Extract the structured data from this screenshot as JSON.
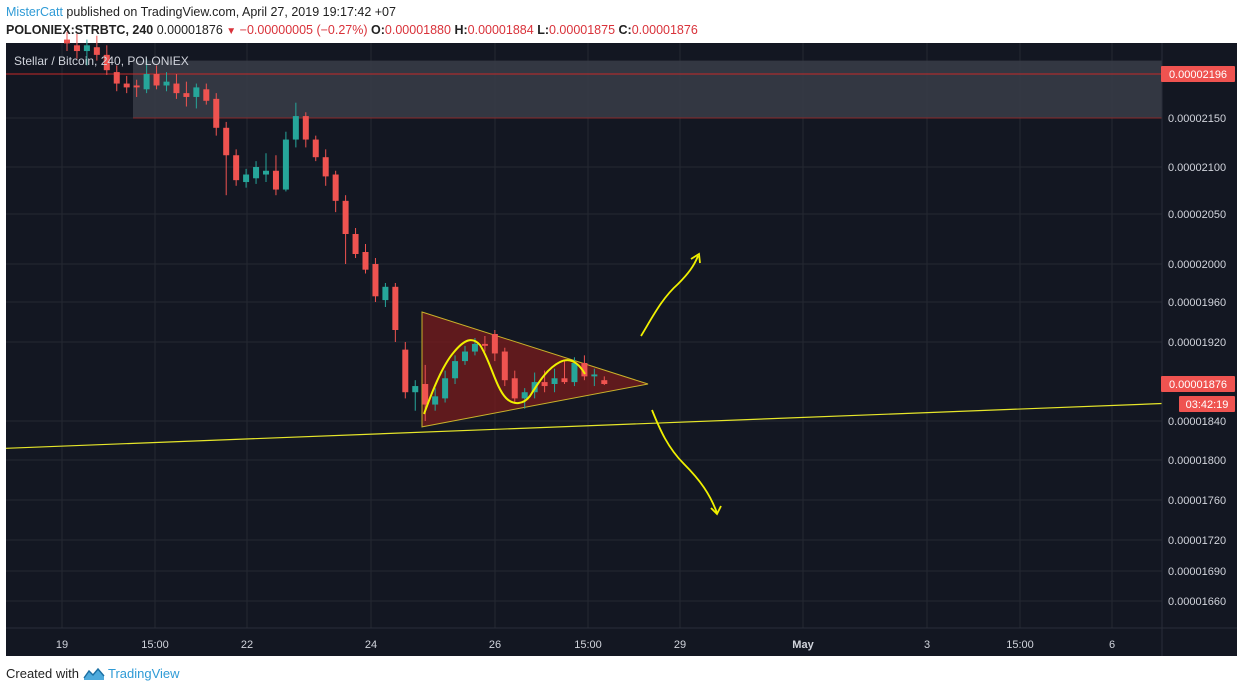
{
  "header": {
    "author": "MisterCatt",
    "published_text": " published on TradingView.com, April 27, 2019 19:17:42 +07",
    "symbol": "POLONIEX:STRBTC, 240",
    "last": "0.00001876",
    "change": "−0.00000005 (−0.27%)",
    "o_label": "O:",
    "o_value": "0.00001880",
    "h_label": "H:",
    "h_value": "0.00001884",
    "l_label": "L:",
    "l_value": "0.00001875",
    "c_label": "C:",
    "c_value": "0.00001876"
  },
  "footer": {
    "created_with": "Created with",
    "brand": "TradingView"
  },
  "colors": {
    "background": "#131722",
    "grid": "#242832",
    "up": "#26a69a",
    "down": "#ef5350",
    "trend": "#e6e62a",
    "sketch": "#f0f000",
    "resistance_line": "#c62828",
    "zone_fill": "#3a3d48",
    "triangle_fill": "#7a1c1c",
    "axis_text": "#d1d4dc"
  },
  "chart_data": {
    "type": "candlestick",
    "title": "Stellar / Bitcoin, 240, POLONIEX",
    "y_ticks": [
      "0.00002150",
      "0.00002100",
      "0.00002050",
      "0.00002000",
      "0.00001960",
      "0.00001920",
      "0.00001840",
      "0.00001800",
      "0.00001760",
      "0.00001720",
      "0.00001690",
      "0.00001660"
    ],
    "x_ticks": [
      "19",
      "15:00",
      "22",
      "24",
      "26",
      "15:00",
      "29",
      "May",
      "3",
      "15:00",
      "6"
    ],
    "price_labels": [
      {
        "text": "0.00002196",
        "role": "resistance"
      },
      {
        "text": "0.00001876",
        "role": "last"
      },
      {
        "text": "03:42:19",
        "role": "countdown"
      }
    ],
    "resistance_level": 2.196e-05,
    "resistance_zone": [
      2.15e-05,
      2.21e-05
    ],
    "triangle": {
      "apex_price": 1.876e-05,
      "top_price": 1.95e-05,
      "bottom_price": 1.834e-05
    },
    "support_line": {
      "start_price": 1.812e-05,
      "end_price": 1.857e-05
    },
    "candles": [
      {
        "o": 2.232e-05,
        "h": 2.24e-05,
        "l": 2.22e-05,
        "c": 2.228e-05
      },
      {
        "o": 2.226e-05,
        "h": 2.238e-05,
        "l": 2.212e-05,
        "c": 2.22e-05
      },
      {
        "o": 2.22e-05,
        "h": 2.232e-05,
        "l": 2.205e-05,
        "c": 2.226e-05
      },
      {
        "o": 2.224e-05,
        "h": 2.236e-05,
        "l": 2.21e-05,
        "c": 2.216e-05
      },
      {
        "o": 2.216e-05,
        "h": 2.226e-05,
        "l": 2.195e-05,
        "c": 2.2e-05
      },
      {
        "o": 2.198e-05,
        "h": 2.205e-05,
        "l": 2.178e-05,
        "c": 2.186e-05
      },
      {
        "o": 2.186e-05,
        "h": 2.194e-05,
        "l": 2.176e-05,
        "c": 2.182e-05
      },
      {
        "o": 2.184e-05,
        "h": 2.19e-05,
        "l": 2.172e-05,
        "c": 2.182e-05
      },
      {
        "o": 2.18e-05,
        "h": 2.212e-05,
        "l": 2.176e-05,
        "c": 2.196e-05
      },
      {
        "o": 2.196e-05,
        "h": 2.205e-05,
        "l": 2.18e-05,
        "c": 2.184e-05
      },
      {
        "o": 2.184e-05,
        "h": 2.198e-05,
        "l": 2.178e-05,
        "c": 2.188e-05
      },
      {
        "o": 2.186e-05,
        "h": 2.196e-05,
        "l": 2.17e-05,
        "c": 2.176e-05
      },
      {
        "o": 2.176e-05,
        "h": 2.188e-05,
        "l": 2.162e-05,
        "c": 2.172e-05
      },
      {
        "o": 2.172e-05,
        "h": 2.186e-05,
        "l": 2.16e-05,
        "c": 2.182e-05
      },
      {
        "o": 2.18e-05,
        "h": 2.186e-05,
        "l": 2.164e-05,
        "c": 2.168e-05
      },
      {
        "o": 2.17e-05,
        "h": 2.176e-05,
        "l": 2.132e-05,
        "c": 2.14e-05
      },
      {
        "o": 2.14e-05,
        "h": 2.146e-05,
        "l": 2.07e-05,
        "c": 2.112e-05
      },
      {
        "o": 2.112e-05,
        "h": 2.118e-05,
        "l": 2.08e-05,
        "c": 2.086e-05
      },
      {
        "o": 2.084e-05,
        "h": 2.098e-05,
        "l": 2.078e-05,
        "c": 2.092e-05
      },
      {
        "o": 2.088e-05,
        "h": 2.106e-05,
        "l": 2.082e-05,
        "c": 2.1e-05
      },
      {
        "o": 2.092e-05,
        "h": 2.114e-05,
        "l": 2.084e-05,
        "c": 2.096e-05
      },
      {
        "o": 2.096e-05,
        "h": 2.112e-05,
        "l": 2.07e-05,
        "c": 2.076e-05
      },
      {
        "o": 2.076e-05,
        "h": 2.136e-05,
        "l": 2.074e-05,
        "c": 2.128e-05
      },
      {
        "o": 2.128e-05,
        "h": 2.166e-05,
        "l": 2.12e-05,
        "c": 2.152e-05
      },
      {
        "o": 2.152e-05,
        "h": 2.156e-05,
        "l": 2.12e-05,
        "c": 2.128e-05
      },
      {
        "o": 2.128e-05,
        "h": 2.132e-05,
        "l": 2.106e-05,
        "c": 2.11e-05
      },
      {
        "o": 2.11e-05,
        "h": 2.118e-05,
        "l": 2.08e-05,
        "c": 2.09e-05
      },
      {
        "o": 2.092e-05,
        "h": 2.096e-05,
        "l": 2.052e-05,
        "c": 2.064e-05
      },
      {
        "o": 2.064e-05,
        "h": 2.07e-05,
        "l": 2e-05,
        "c": 2.03e-05
      },
      {
        "o": 2.03e-05,
        "h": 2.036e-05,
        "l": 2.006e-05,
        "c": 2.01e-05
      },
      {
        "o": 2.012e-05,
        "h": 2.02e-05,
        "l": 1.99e-05,
        "c": 1.994e-05
      },
      {
        "o": 2e-05,
        "h": 2.006e-05,
        "l": 1.96e-05,
        "c": 1.966e-05
      },
      {
        "o": 1.962e-05,
        "h": 1.98e-05,
        "l": 1.955e-05,
        "c": 1.976e-05
      },
      {
        "o": 1.976e-05,
        "h": 1.98e-05,
        "l": 1.92e-05,
        "c": 1.932e-05
      },
      {
        "o": 1.912e-05,
        "h": 1.92e-05,
        "l": 1.862e-05,
        "c": 1.868e-05
      },
      {
        "o": 1.868e-05,
        "h": 1.88e-05,
        "l": 1.85e-05,
        "c": 1.874e-05
      },
      {
        "o": 1.876e-05,
        "h": 1.896e-05,
        "l": 1.84e-05,
        "c": 1.856e-05
      },
      {
        "o": 1.856e-05,
        "h": 1.872e-05,
        "l": 1.85e-05,
        "c": 1.864e-05
      },
      {
        "o": 1.862e-05,
        "h": 1.89e-05,
        "l": 1.858e-05,
        "c": 1.882e-05
      },
      {
        "o": 1.882e-05,
        "h": 1.906e-05,
        "l": 1.876e-05,
        "c": 1.9e-05
      },
      {
        "o": 1.9e-05,
        "h": 1.916e-05,
        "l": 1.896e-05,
        "c": 1.91e-05
      },
      {
        "o": 1.91e-05,
        "h": 1.924e-05,
        "l": 1.906e-05,
        "c": 1.918e-05
      },
      {
        "o": 1.918e-05,
        "h": 1.926e-05,
        "l": 1.91e-05,
        "c": 1.916e-05
      },
      {
        "o": 1.928e-05,
        "h": 1.932e-05,
        "l": 1.9e-05,
        "c": 1.908e-05
      },
      {
        "o": 1.91e-05,
        "h": 1.914e-05,
        "l": 1.874e-05,
        "c": 1.88e-05
      },
      {
        "o": 1.882e-05,
        "h": 1.89e-05,
        "l": 1.858e-05,
        "c": 1.862e-05
      },
      {
        "o": 1.862e-05,
        "h": 1.872e-05,
        "l": 1.852e-05,
        "c": 1.868e-05
      },
      {
        "o": 1.868e-05,
        "h": 1.888e-05,
        "l": 1.862e-05,
        "c": 1.878e-05
      },
      {
        "o": 1.878e-05,
        "h": 1.89e-05,
        "l": 1.868e-05,
        "c": 1.874e-05
      },
      {
        "o": 1.876e-05,
        "h": 1.892e-05,
        "l": 1.868e-05,
        "c": 1.882e-05
      },
      {
        "o": 1.882e-05,
        "h": 1.9e-05,
        "l": 1.876e-05,
        "c": 1.878e-05
      },
      {
        "o": 1.878e-05,
        "h": 1.904e-05,
        "l": 1.874e-05,
        "c": 1.898e-05
      },
      {
        "o": 1.898e-05,
        "h": 1.906e-05,
        "l": 1.88e-05,
        "c": 1.884e-05
      },
      {
        "o": 1.884e-05,
        "h": 1.892e-05,
        "l": 1.874e-05,
        "c": 1.886e-05
      },
      {
        "o": 1.88e-05,
        "h": 1.884e-05,
        "l": 1.875e-05,
        "c": 1.876e-05
      }
    ]
  }
}
